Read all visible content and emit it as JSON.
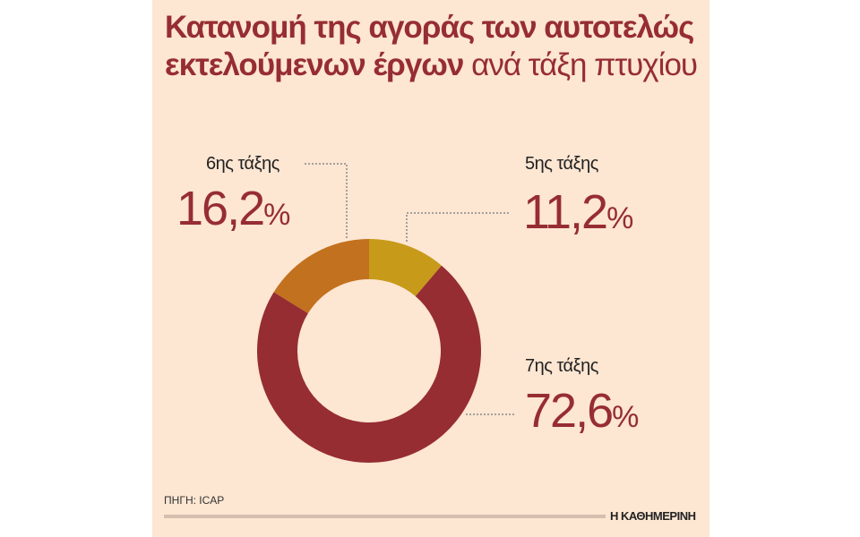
{
  "title": {
    "bold": "Κατανομή της αγοράς των αυτοτελώς εκτελούμενων έργων",
    "line1": "Κατανομή της αγοράς των αυτοτελώς",
    "line2_bold": "εκτελούμενων έργων",
    "line2_regular": "ανά τάξη πτυχίου"
  },
  "labels": {
    "c6": {
      "name": "6ης τάξης",
      "value": "16,2",
      "pct": "%"
    },
    "c5": {
      "name": "5ης τάξης",
      "value": "11,2",
      "pct": "%"
    },
    "c7": {
      "name": "7ης τάξης",
      "value": "72,6",
      "pct": "%"
    }
  },
  "footer": {
    "source": "ΠΗΓΗ: ICAP",
    "brand": "Η ΚΑΘΗΜΕΡΙΝΗ"
  },
  "colors": {
    "background": "#fde6d2",
    "c5": "#c79a1a",
    "c6": "#c2711e",
    "c7": "#962d32",
    "text_accent": "#962d32"
  },
  "chart_data": {
    "type": "pie",
    "variant": "donut",
    "title": "Κατανομή της αγοράς των αυτοτελώς εκτελούμενων έργων ανά τάξη πτυχίου",
    "categories": [
      "5ης τάξης",
      "7ης τάξης",
      "6ης τάξης"
    ],
    "values": [
      11.2,
      72.6,
      16.2
    ],
    "unit": "%",
    "colors": [
      "#c79a1a",
      "#962d32",
      "#c2711e"
    ],
    "source": "ΠΗΓΗ: ICAP",
    "legend": "callout labels with dotted leader lines"
  }
}
